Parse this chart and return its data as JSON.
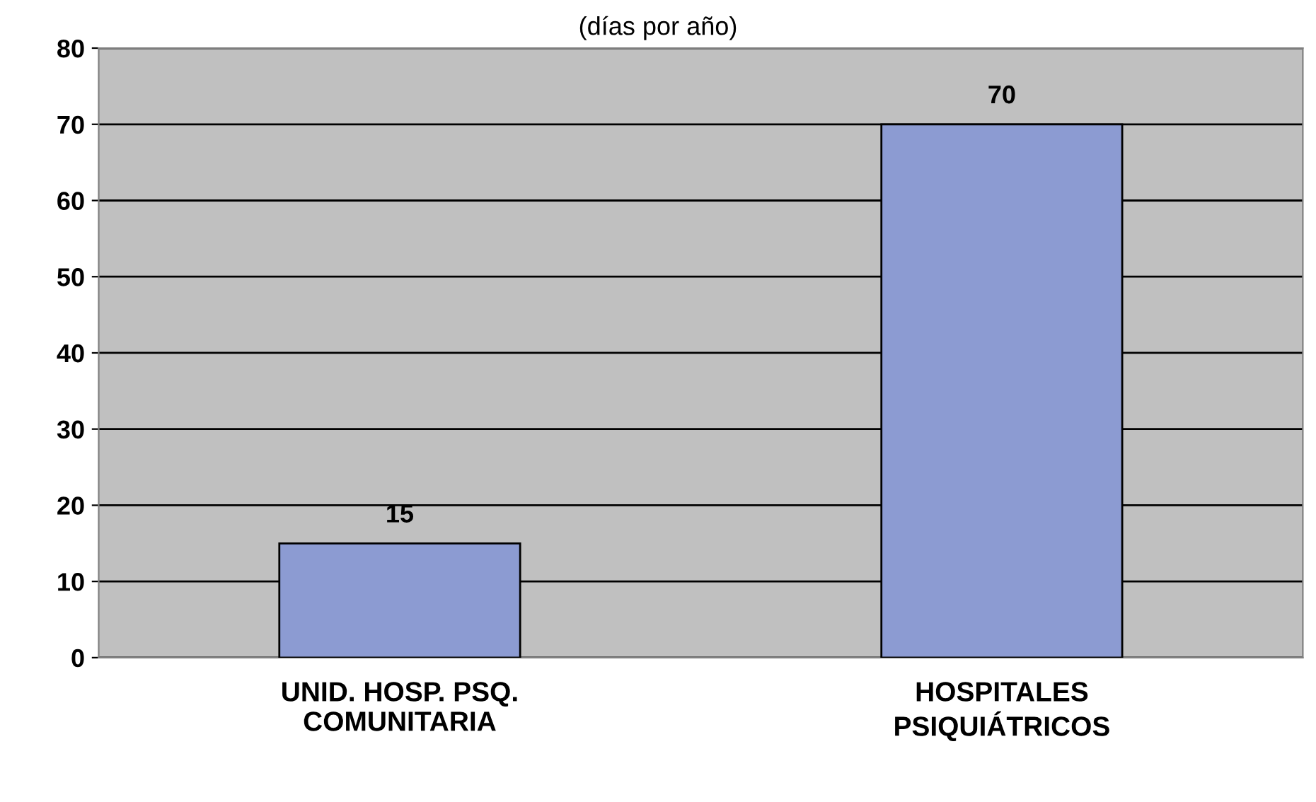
{
  "chart_data": {
    "type": "bar",
    "subtitle": "(días por año)",
    "categories": [
      "UNID. HOSP. PSQ.\nCOMUNITARIA",
      "HOSPITALES\nPSIQUIÁTRICOS"
    ],
    "values": [
      15,
      70
    ],
    "color": "#8c9bd2",
    "ylim": [
      0,
      80
    ],
    "yticks": [
      0,
      10,
      20,
      30,
      40,
      50,
      60,
      70,
      80
    ],
    "grid": "y",
    "data_labels": true
  }
}
